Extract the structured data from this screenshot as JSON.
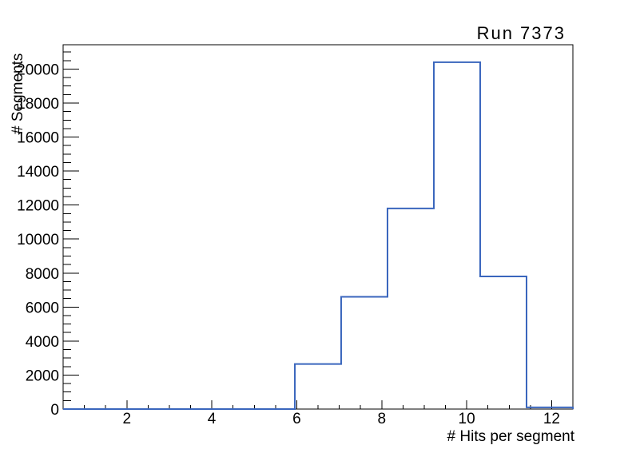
{
  "page": {
    "background": "#ffffff"
  },
  "chart_data": {
    "type": "bar",
    "style": "step-histogram",
    "title": "Run 7373",
    "xlabel": "# Hits per segment",
    "ylabel": "# Segments",
    "bin_edges": [
      0.5,
      1.591,
      2.682,
      3.773,
      4.864,
      5.955,
      7.045,
      8.136,
      9.227,
      10.318,
      11.409,
      12.5
    ],
    "values": [
      0,
      0,
      0,
      0,
      0,
      2650,
      6600,
      11800,
      20400,
      7800,
      100
    ],
    "xlim": [
      0.5,
      12.5
    ],
    "ylim": [
      0,
      21430
    ],
    "x_tick_labels": [
      2,
      4,
      6,
      8,
      10,
      12
    ],
    "x_minor_step": 0.5,
    "y_tick_labels": [
      0,
      2000,
      4000,
      6000,
      8000,
      10000,
      12000,
      14000,
      16000,
      18000,
      20000
    ],
    "y_minor_step": 500,
    "grid": false,
    "legend": null,
    "line_color": "#3a66bd",
    "axis_color": "#000000",
    "text_color": "#000000"
  }
}
